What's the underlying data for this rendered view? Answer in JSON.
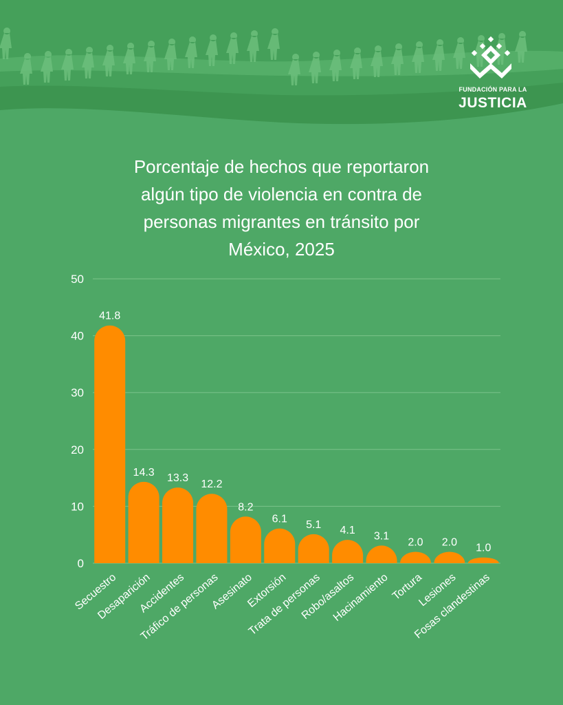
{
  "brand": {
    "line1": "FUNDACIÓN PARA LA",
    "line2": "JUSTICIA"
  },
  "colors": {
    "background": "#4ea866",
    "bar": "#ff8c00",
    "text": "#ffffff",
    "header_dark": "#3a8f4d"
  },
  "chart_data": {
    "type": "bar",
    "title": "Porcentaje de hechos que reportaron algún tipo de violencia en contra de personas migrantes en tránsito por México, 2025",
    "title_lines": [
      "Porcentaje de hechos que reportaron",
      "algún tipo de violencia en contra de",
      "personas migrantes en tránsito por",
      "México, 2025"
    ],
    "categories": [
      "Secuestro",
      "Desaparición",
      "Accidentes",
      "Tráfico de personas",
      "Asesinato",
      "Extorsión",
      "Trata de personas",
      "Robo/asaltos",
      "Hacinamiento",
      "Tortura",
      "Lesiones",
      "Fosas clandestinas"
    ],
    "values": [
      41.8,
      14.3,
      13.3,
      12.2,
      8.2,
      6.1,
      5.1,
      4.1,
      3.1,
      2.0,
      2.0,
      1.0
    ],
    "data_labels": [
      "41.8",
      "14.3",
      "13.3",
      "12.2",
      "8.2",
      "6.1",
      "5.1",
      "4.1",
      "3.1",
      "2.0",
      "2.0",
      "1.0"
    ],
    "yticks": [
      0,
      10,
      20,
      30,
      40,
      50
    ],
    "ylim": [
      0,
      50
    ],
    "xlabel": "",
    "ylabel": "",
    "grid": true
  }
}
